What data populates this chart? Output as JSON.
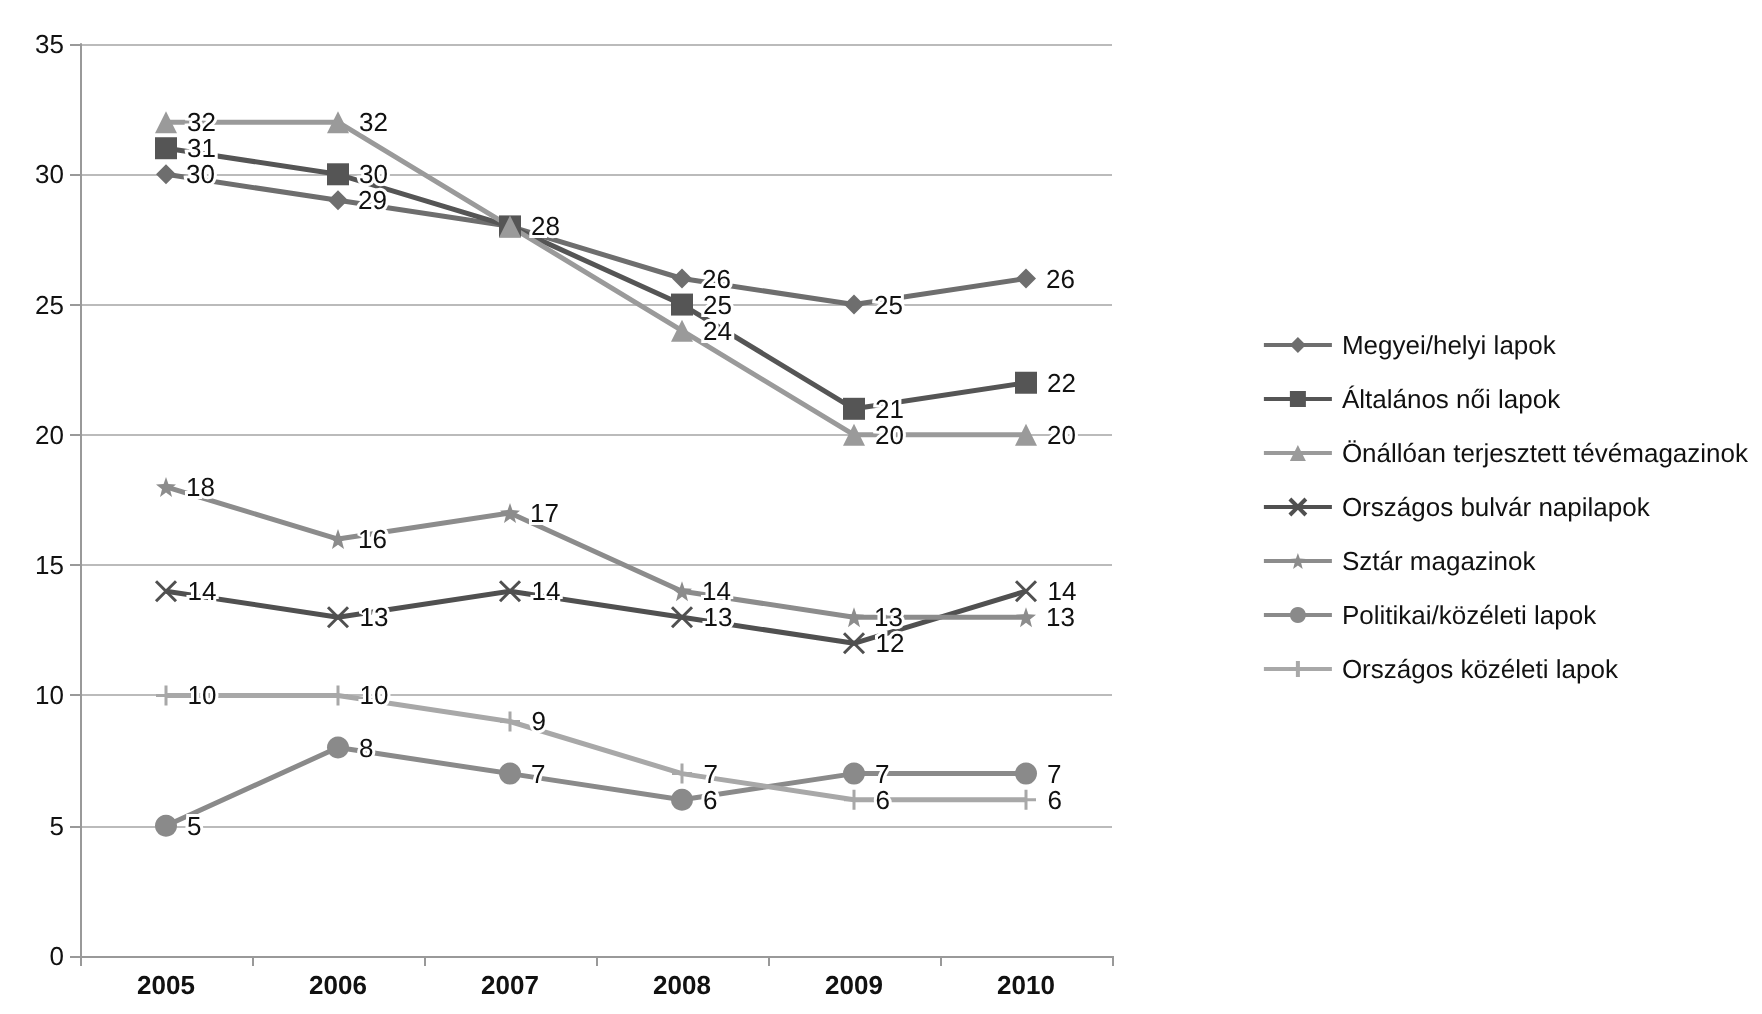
{
  "chart_data": {
    "type": "line",
    "categories": [
      "2005",
      "2006",
      "2007",
      "2008",
      "2009",
      "2010"
    ],
    "series": [
      {
        "name": "Megyei/helyi lapok",
        "color": "#6e6e6e",
        "marker": "diamond",
        "values": [
          30,
          29,
          28,
          26,
          25,
          26
        ],
        "value_labels": [
          "30",
          "29",
          null,
          "26",
          "25",
          "26"
        ]
      },
      {
        "name": "Általános női lapok",
        "color": "#555555",
        "marker": "square",
        "values": [
          31,
          30,
          28,
          25,
          21,
          22
        ],
        "value_labels": [
          "31",
          "30",
          "28",
          "25",
          "21",
          "22"
        ]
      },
      {
        "name": "Önállóan terjesztett tévémagazinok",
        "color": "#9a9a9a",
        "marker": "triangle",
        "values": [
          32,
          32,
          28,
          24,
          20,
          20
        ],
        "value_labels": [
          "32",
          "32",
          null,
          "24",
          "20",
          "20"
        ]
      },
      {
        "name": "Országos bulvár napilapok",
        "color": "#505050",
        "marker": "cross",
        "values": [
          14,
          13,
          14,
          13,
          12,
          14
        ],
        "value_labels": [
          "14",
          "13",
          "14",
          "13",
          "12",
          "14"
        ]
      },
      {
        "name": "Sztár magazinok",
        "color": "#8c8c8c",
        "marker": "star",
        "values": [
          18,
          16,
          17,
          14,
          13,
          13
        ],
        "value_labels": [
          "18",
          "16",
          "17",
          "14",
          "13",
          "13"
        ]
      },
      {
        "name": "Politikai/közéleti lapok",
        "color": "#8a8a8a",
        "marker": "circle",
        "values": [
          5,
          8,
          7,
          6,
          7,
          7
        ],
        "value_labels": [
          "5",
          "8",
          "7",
          "6",
          "7",
          "7"
        ]
      },
      {
        "name": "Országos közéleti lapok",
        "color": "#a8a8a8",
        "marker": "cross",
        "values": [
          10,
          10,
          9,
          7,
          6,
          6
        ],
        "value_labels": [
          "10",
          "10",
          "9",
          "7",
          "6",
          "6"
        ]
      }
    ],
    "ylim": [
      0,
      35
    ],
    "yticks": [
      0,
      5,
      10,
      15,
      20,
      25,
      30,
      35
    ],
    "grid": "y",
    "legend": "right"
  }
}
